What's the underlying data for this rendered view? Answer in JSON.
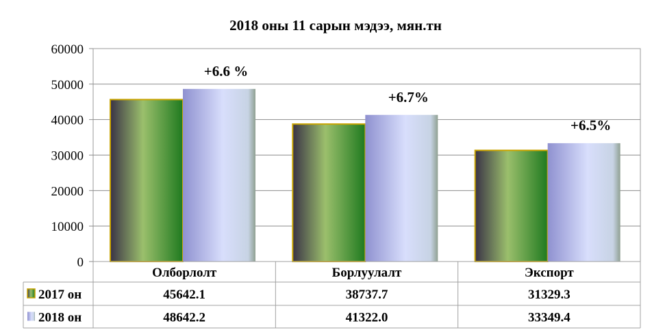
{
  "chart_data": {
    "type": "bar",
    "title": "2018 оны 11 сарын мэдээ, мян.тн",
    "categories": [
      "Олборлолт",
      "Борлуулалт",
      "Экспорт"
    ],
    "series": [
      {
        "name": "2017 он",
        "values": [
          45642.1,
          38737.7,
          31329.3
        ],
        "display": [
          "45642.1",
          "38737.7",
          "31329.3"
        ]
      },
      {
        "name": "2018 он",
        "values": [
          48642.2,
          41322.0,
          33349.4
        ],
        "display": [
          "48642.2",
          "41322.0",
          "33349.4"
        ]
      }
    ],
    "annotations": [
      "+6.6 %",
      "+6.7%",
      "+6.5%"
    ],
    "y_ticks": [
      "0",
      "10000",
      "20000",
      "30000",
      "40000",
      "50000",
      "60000"
    ],
    "ylim": [
      0,
      60000
    ],
    "grid": true,
    "legend": "data-table",
    "colors": {
      "series_2017": [
        "#3a3346",
        "#9bbf6c",
        "#1f7a1f"
      ],
      "series_2017_border": "#c9a400",
      "series_2018": [
        "#8f91d0",
        "#d8defc",
        "#8fa092"
      ]
    }
  }
}
